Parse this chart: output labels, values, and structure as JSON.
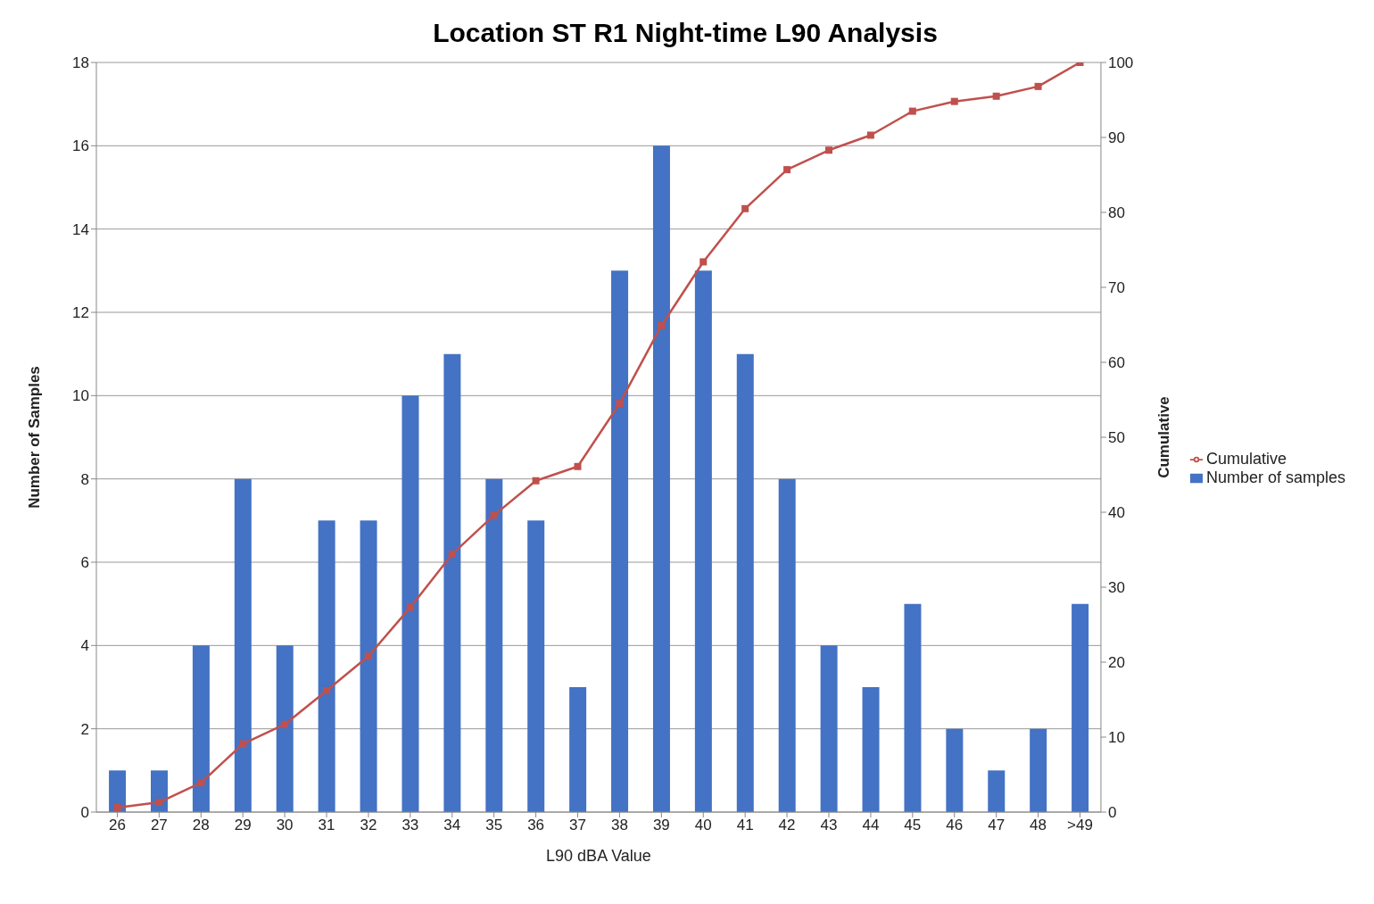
{
  "chart_data": {
    "type": "bar",
    "title": "Location ST R1 Night-time L90 Analysis",
    "xlabel": "L90 dBA Value",
    "ylabel": "Number of Samples",
    "y2label": "Cumulative",
    "categories": [
      "26",
      "27",
      "28",
      "29",
      "30",
      "31",
      "32",
      "33",
      "34",
      "35",
      "36",
      "37",
      "38",
      "39",
      "40",
      "41",
      "42",
      "43",
      "44",
      "45",
      "46",
      "47",
      "48",
      ">49"
    ],
    "series": [
      {
        "name": "Number of samples",
        "color": "#4472c4",
        "values": [
          1,
          1,
          4,
          8,
          4,
          7,
          7,
          10,
          11,
          8,
          7,
          3,
          13,
          16,
          13,
          11,
          8,
          4,
          3,
          5,
          2,
          1,
          2,
          5
        ]
      },
      {
        "name": "Cumulative",
        "type": "line",
        "axis": "y2",
        "color": "#c0504d",
        "marker": "square",
        "values": [
          0.6,
          1.3,
          3.9,
          9.1,
          11.7,
          16.2,
          20.8,
          27.3,
          34.4,
          39.6,
          44.2,
          46.1,
          54.5,
          64.9,
          73.4,
          80.5,
          85.7,
          88.3,
          90.3,
          93.5,
          94.8,
          95.5,
          96.8,
          100
        ]
      }
    ],
    "ylim": [
      0,
      18
    ],
    "yticks": [
      0,
      2,
      4,
      6,
      8,
      10,
      12,
      14,
      16,
      18
    ],
    "y2lim": [
      0,
      100
    ],
    "y2ticks": [
      0,
      10,
      20,
      30,
      40,
      50,
      60,
      70,
      80,
      90,
      100
    ],
    "grid": "y",
    "legend": "right"
  }
}
